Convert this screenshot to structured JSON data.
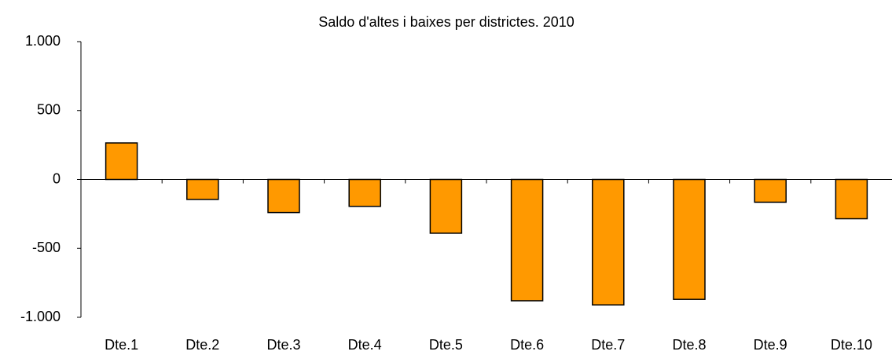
{
  "chart_data": {
    "type": "bar",
    "title": "Saldo d'altes i baixes per districtes. 2010",
    "categories": [
      "Dte.1",
      "Dte.2",
      "Dte.3",
      "Dte.4",
      "Dte.5",
      "Dte.6",
      "Dte.7",
      "Dte.8",
      "Dte.9",
      "Dte.10"
    ],
    "values": [
      265,
      -145,
      -240,
      -195,
      -390,
      -880,
      -910,
      -870,
      -165,
      -285
    ],
    "color": "#ff9900",
    "ylim": [
      -1000,
      1000
    ],
    "yticks": [
      {
        "value": -1000,
        "label": "-1.000"
      },
      -500,
      0,
      500,
      {
        "value": 1000,
        "label": "1.000"
      }
    ],
    "grid": false
  }
}
